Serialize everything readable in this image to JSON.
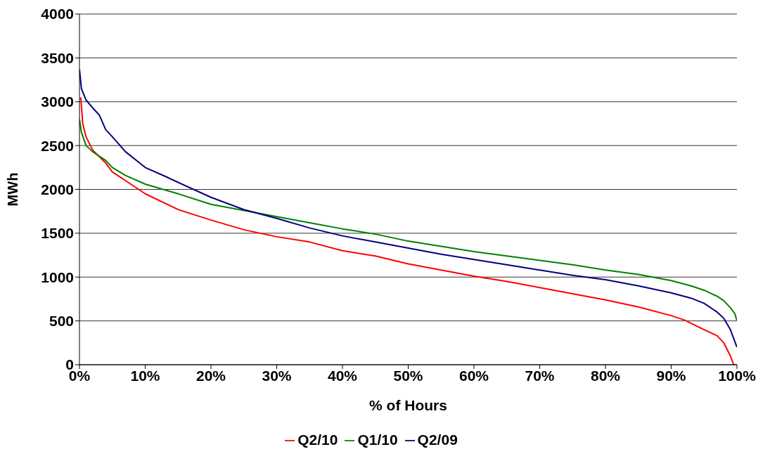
{
  "chart_data": {
    "type": "line",
    "xlabel": "% of Hours",
    "ylabel": "MWh",
    "xlim": [
      0,
      100
    ],
    "xticks": [
      {
        "value": 0,
        "label": "0%"
      },
      {
        "value": 10,
        "label": "10%"
      },
      {
        "value": 20,
        "label": "20%"
      },
      {
        "value": 30,
        "label": "30%"
      },
      {
        "value": 40,
        "label": "40%"
      },
      {
        "value": 50,
        "label": "50%"
      },
      {
        "value": 60,
        "label": "60%"
      },
      {
        "value": 70,
        "label": "70%"
      },
      {
        "value": 80,
        "label": "80%"
      },
      {
        "value": 90,
        "label": "90%"
      },
      {
        "value": 100,
        "label": "100%"
      }
    ],
    "ylim": [
      0,
      4000
    ],
    "yticks": [
      0,
      500,
      1000,
      1500,
      2000,
      2500,
      3000,
      3500,
      4000
    ],
    "grid": "y",
    "legend": "bottom",
    "marker": "none",
    "line_style": "solid",
    "series": [
      {
        "name": "Q2/10",
        "color": "#ff0000",
        "x": [
          0.2,
          0.5,
          1,
          2,
          4,
          5,
          7,
          10,
          15,
          20,
          25,
          30,
          35,
          40,
          45,
          50,
          55,
          60,
          65,
          70,
          75,
          80,
          85,
          90,
          92,
          95,
          97,
          98,
          99,
          99.5,
          100
        ],
        "values": [
          3050,
          2750,
          2600,
          2450,
          2300,
          2200,
          2100,
          1950,
          1770,
          1650,
          1540,
          1460,
          1400,
          1300,
          1240,
          1150,
          1080,
          1010,
          950,
          880,
          810,
          740,
          660,
          560,
          510,
          400,
          330,
          250,
          100,
          0,
          0
        ]
      },
      {
        "name": "Q1/10",
        "color": "#008000",
        "x": [
          0,
          0.3,
          1,
          2,
          4,
          5,
          7,
          10,
          15,
          20,
          25,
          30,
          35,
          40,
          45,
          50,
          55,
          60,
          65,
          70,
          75,
          80,
          85,
          90,
          93,
          95,
          97,
          98,
          99,
          99.7,
          100
        ],
        "values": [
          2800,
          2650,
          2500,
          2430,
          2330,
          2250,
          2160,
          2060,
          1950,
          1830,
          1760,
          1690,
          1620,
          1550,
          1490,
          1410,
          1350,
          1290,
          1240,
          1190,
          1140,
          1080,
          1030,
          960,
          900,
          850,
          780,
          730,
          650,
          580,
          500
        ]
      },
      {
        "name": "Q2/09",
        "color": "#000080",
        "x": [
          0,
          0.3,
          1,
          2,
          3,
          4,
          5,
          7,
          10,
          13,
          15,
          20,
          25,
          30,
          35,
          40,
          45,
          50,
          55,
          60,
          65,
          70,
          75,
          80,
          85,
          90,
          93,
          95,
          97,
          98,
          99,
          99.5,
          100
        ],
        "values": [
          3370,
          3150,
          3020,
          2930,
          2850,
          2680,
          2600,
          2430,
          2250,
          2150,
          2080,
          1910,
          1770,
          1670,
          1560,
          1470,
          1400,
          1330,
          1260,
          1200,
          1140,
          1080,
          1020,
          970,
          900,
          820,
          760,
          700,
          600,
          530,
          400,
          300,
          200
        ]
      }
    ]
  }
}
